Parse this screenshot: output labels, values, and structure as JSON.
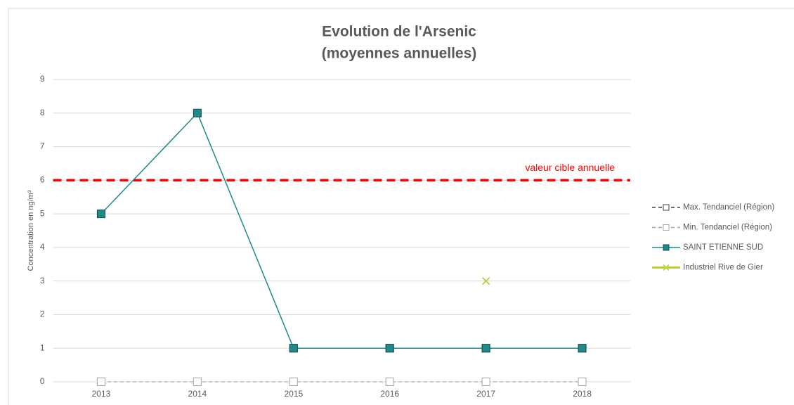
{
  "chart_data": {
    "type": "line",
    "title": "Evolution de l'Arsenic",
    "subtitle": "(moyennes annuelles)",
    "y_label": "Concentration en ng/m³",
    "categories": [
      "2013",
      "2014",
      "2015",
      "2016",
      "2017",
      "2018"
    ],
    "series": [
      {
        "name": "Max. Tendanciel (Région)",
        "color": "#404040",
        "style": "dashed",
        "marker": "square-hollow",
        "values": [
          null,
          null,
          1,
          1,
          1,
          1
        ]
      },
      {
        "name": "Min. Tendanciel (Région)",
        "color": "#a6a6a6",
        "style": "dashed",
        "marker": "square-hollow",
        "values": [
          0,
          0,
          0,
          0,
          0,
          0
        ]
      },
      {
        "name": "SAINT ETIENNE SUD",
        "color": "#1f8a8a",
        "style": "solid",
        "marker": "square",
        "values": [
          5,
          8,
          1,
          1,
          1,
          1
        ]
      },
      {
        "name": "Industriel Rive de Gier",
        "color": "#b5d334",
        "style": "solid",
        "marker": "x",
        "values": [
          null,
          null,
          null,
          null,
          3,
          null
        ]
      }
    ],
    "reference_lines": [
      {
        "value": 6,
        "label": "valeur cible annuelle",
        "color": "#ff0000"
      }
    ],
    "ylim": [
      0,
      9
    ],
    "yticks": [
      0,
      1,
      2,
      3,
      4,
      5,
      6,
      7,
      8,
      9
    ],
    "grid": true,
    "legend": "right"
  }
}
